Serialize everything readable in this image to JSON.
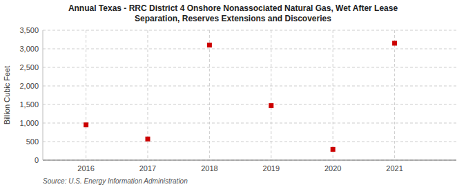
{
  "chart_data": {
    "type": "scatter",
    "title": "Annual Texas - RRC District 4 Onshore Nonassociated Natural Gas, Wet After Lease\nSeparation, Reserves Extensions and Discoveries",
    "ylabel": "Billion Cubic Feet",
    "annotations": [
      "Source: U.S. Energy Information Administration"
    ],
    "x": [
      2016,
      2017,
      2018,
      2019,
      2020,
      2021
    ],
    "values": [
      950,
      570,
      3100,
      1470,
      290,
      3150
    ],
    "color": "#cc0000",
    "marker": "square",
    "xlim": [
      2015.3,
      2022.0
    ],
    "xticks": [
      2016,
      2017,
      2018,
      2019,
      2020,
      2021
    ],
    "ylim": [
      0,
      3500
    ],
    "yticks": [
      0,
      500,
      {
        "value": 1000,
        "label": "1,000"
      },
      {
        "value": 1500,
        "label": "1,500"
      },
      {
        "value": 2000,
        "label": "2,000"
      },
      {
        "value": 2500,
        "label": "2,500"
      },
      {
        "value": 3000,
        "label": "3,000"
      },
      {
        "value": 3500,
        "label": "3,500"
      }
    ],
    "grid": true
  }
}
